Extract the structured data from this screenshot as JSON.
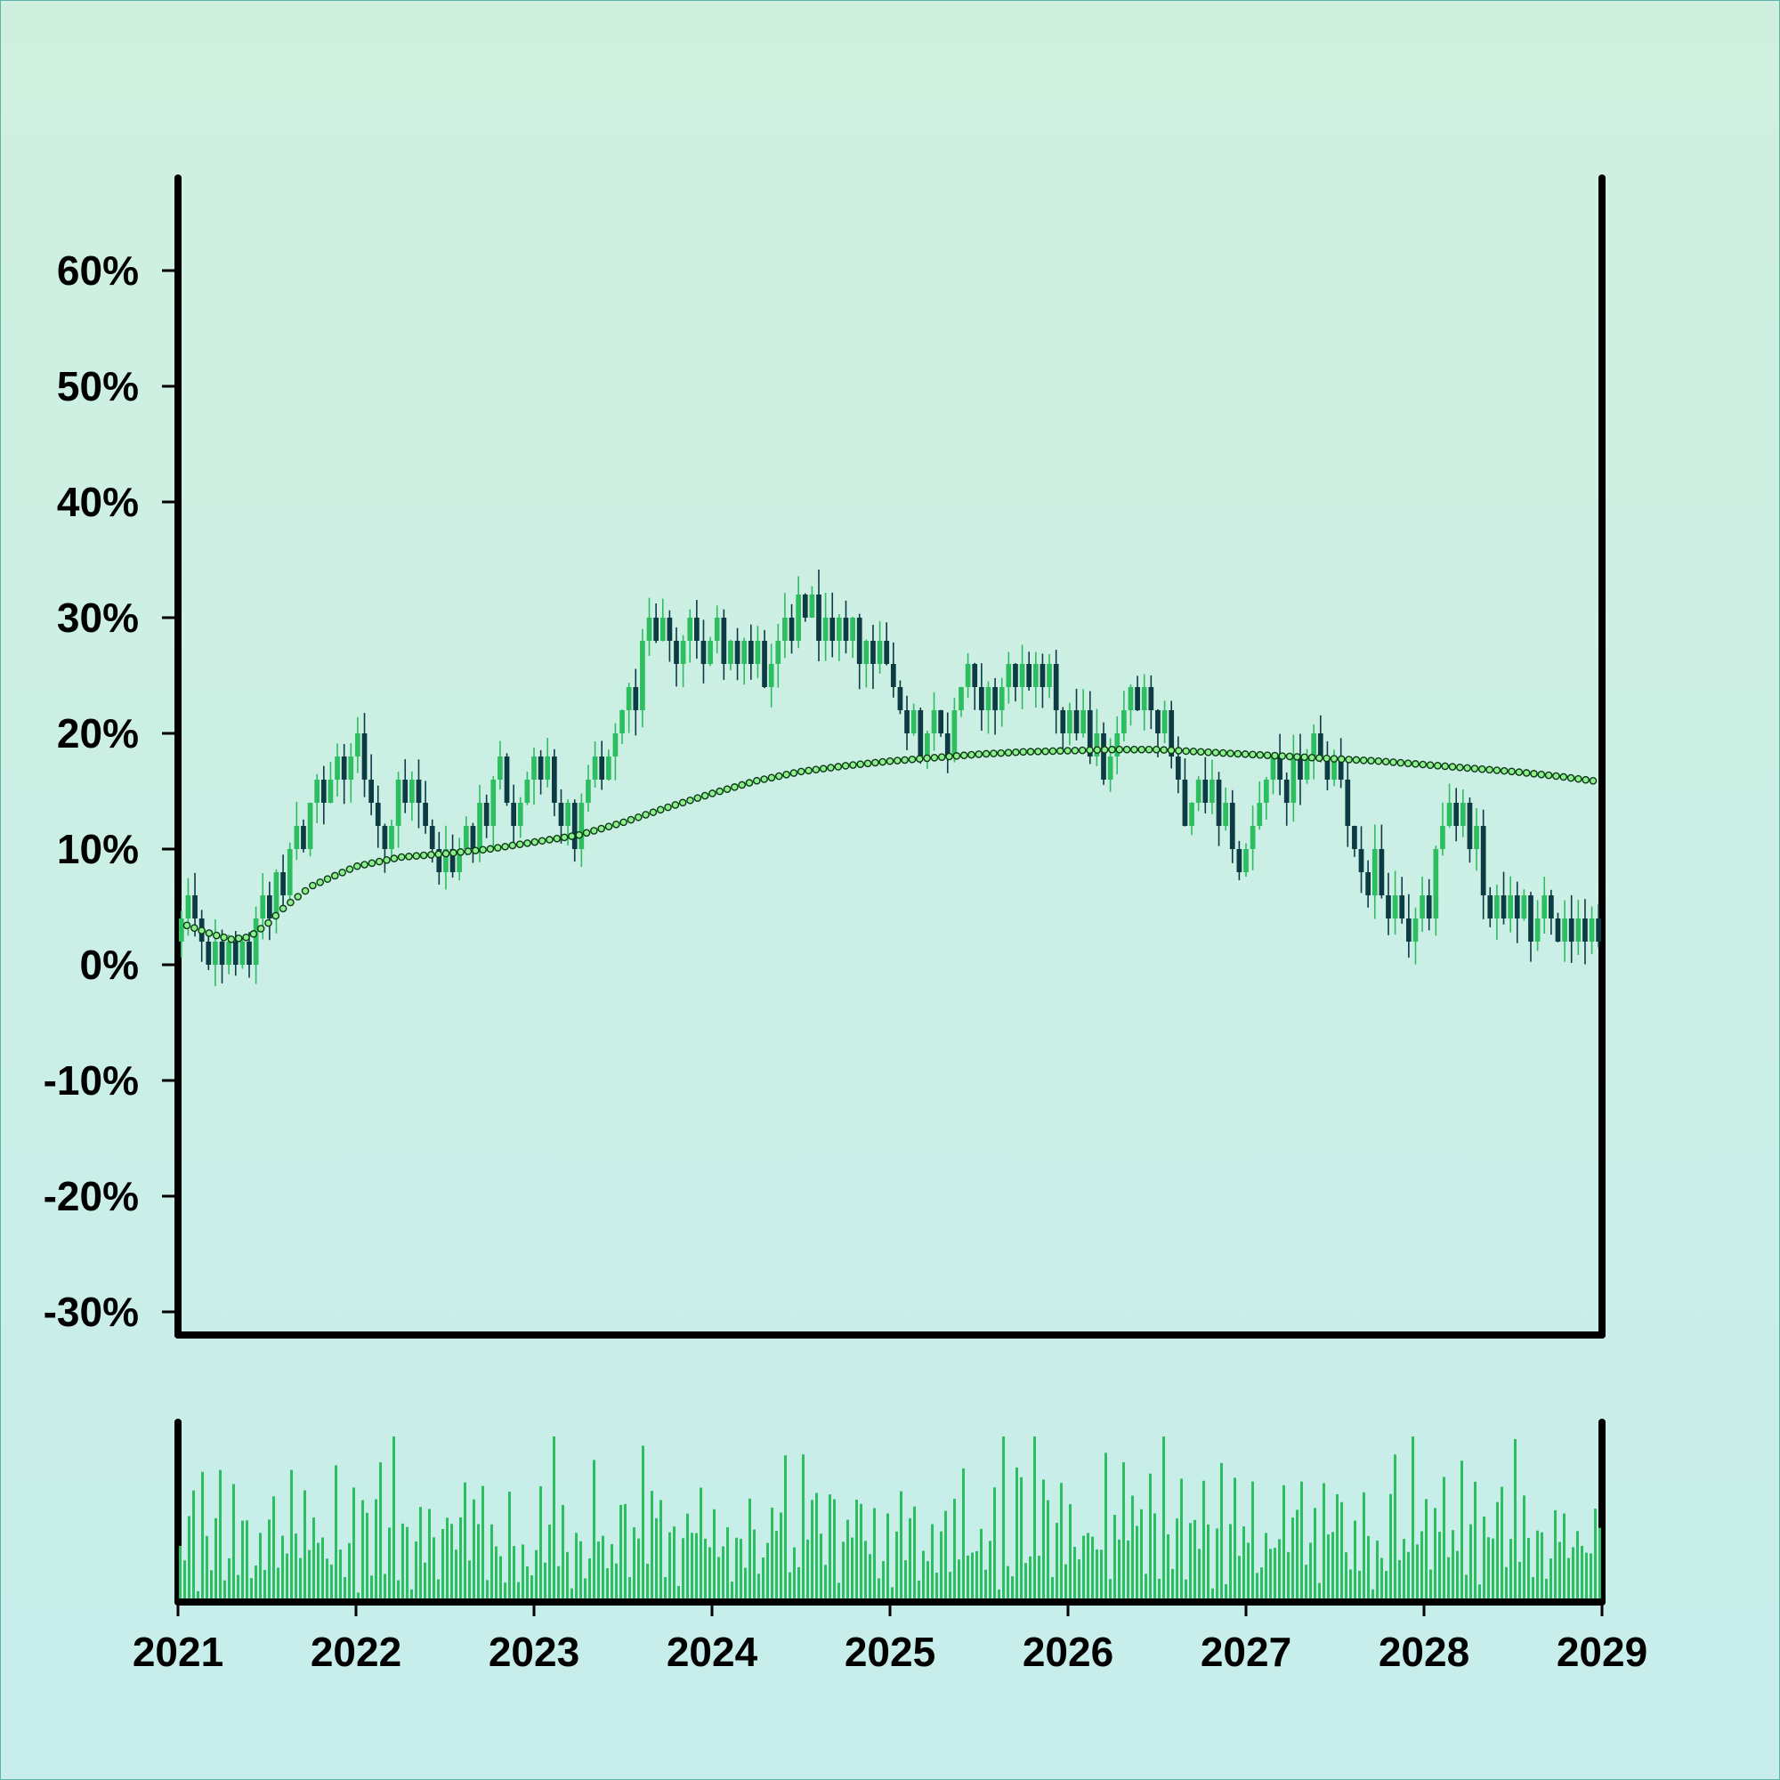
{
  "chart_data": [
    {
      "type": "candlestick",
      "title": "",
      "xlabel": "",
      "ylabel": "",
      "x_ticks": [
        "2021",
        "2022",
        "2023",
        "2024",
        "2025",
        "2026",
        "2027",
        "2028",
        "2029"
      ],
      "x_range": [
        2021,
        2029
      ],
      "y_ticks": [
        "-30%",
        "-20%",
        "-10%",
        "0%",
        "10%",
        "20%",
        "30%",
        "40%",
        "50%",
        "60%"
      ],
      "ylim": [
        -32,
        68
      ],
      "grid": false,
      "colors": {
        "up": "#2dbe60",
        "down": "#0d3b44",
        "trend_fill": "#8cf08c",
        "trend_stroke": "#0a3a14"
      },
      "trend_line": [
        [
          2021.05,
          3.4
        ],
        [
          2021.2,
          2.6
        ],
        [
          2021.3,
          2.2
        ],
        [
          2021.4,
          2.4
        ],
        [
          2021.5,
          3.5
        ],
        [
          2021.6,
          5.0
        ],
        [
          2021.75,
          6.8
        ],
        [
          2022.0,
          8.5
        ],
        [
          2022.25,
          9.3
        ],
        [
          2022.5,
          9.6
        ],
        [
          2022.75,
          10.0
        ],
        [
          2023.0,
          10.6
        ],
        [
          2023.25,
          11.2
        ],
        [
          2023.5,
          12.3
        ],
        [
          2023.75,
          13.6
        ],
        [
          2024.0,
          14.8
        ],
        [
          2024.25,
          15.9
        ],
        [
          2024.5,
          16.7
        ],
        [
          2024.75,
          17.2
        ],
        [
          2025.0,
          17.6
        ],
        [
          2025.25,
          17.9
        ],
        [
          2025.5,
          18.2
        ],
        [
          2025.75,
          18.4
        ],
        [
          2026.0,
          18.5
        ],
        [
          2026.25,
          18.6
        ],
        [
          2026.5,
          18.6
        ],
        [
          2026.75,
          18.4
        ],
        [
          2027.0,
          18.2
        ],
        [
          2027.25,
          18.0
        ],
        [
          2027.5,
          17.8
        ],
        [
          2027.75,
          17.6
        ],
        [
          2028.0,
          17.3
        ],
        [
          2028.25,
          17.0
        ],
        [
          2028.5,
          16.7
        ],
        [
          2028.75,
          16.3
        ],
        [
          2028.95,
          15.9
        ]
      ],
      "price_path": [
        [
          2021.0,
          2.0
        ],
        [
          2021.08,
          5.0
        ],
        [
          2021.2,
          1.0
        ],
        [
          2021.3,
          2.0
        ],
        [
          2021.38,
          0.5
        ],
        [
          2021.5,
          5.0
        ],
        [
          2021.6,
          8.0
        ],
        [
          2021.75,
          13.0
        ],
        [
          2021.9,
          16.0
        ],
        [
          2022.0,
          19.0
        ],
        [
          2022.1,
          15.0
        ],
        [
          2022.18,
          12.0
        ],
        [
          2022.25,
          15.0
        ],
        [
          2022.35,
          13.0
        ],
        [
          2022.45,
          11.0
        ],
        [
          2022.55,
          8.0
        ],
        [
          2022.65,
          10.0
        ],
        [
          2022.8,
          17.0
        ],
        [
          2022.9,
          14.0
        ],
        [
          2023.0,
          17.0
        ],
        [
          2023.1,
          14.0
        ],
        [
          2023.2,
          10.5
        ],
        [
          2023.3,
          15.0
        ],
        [
          2023.4,
          17.0
        ],
        [
          2023.5,
          22.0
        ],
        [
          2023.65,
          28.0
        ],
        [
          2023.75,
          28.0
        ],
        [
          2023.85,
          27.0
        ],
        [
          2024.0,
          29.0
        ],
        [
          2024.12,
          25.5
        ],
        [
          2024.2,
          27.5
        ],
        [
          2024.3,
          24.0
        ],
        [
          2024.42,
          29.0
        ],
        [
          2024.5,
          31.0
        ],
        [
          2024.6,
          28.0
        ],
        [
          2024.7,
          31.0
        ],
        [
          2024.8,
          27.0
        ],
        [
          2024.95,
          27.0
        ],
        [
          2025.1,
          22.0
        ],
        [
          2025.2,
          18.0
        ],
        [
          2025.3,
          21.0
        ],
        [
          2025.4,
          24.0
        ],
        [
          2025.5,
          25.0
        ],
        [
          2025.6,
          22.0
        ],
        [
          2025.7,
          24.0
        ],
        [
          2025.8,
          25.0
        ],
        [
          2025.9,
          22.0
        ],
        [
          2026.1,
          21.0
        ],
        [
          2026.2,
          16.0
        ],
        [
          2026.3,
          21.0
        ],
        [
          2026.38,
          24.0
        ],
        [
          2026.5,
          19.0
        ],
        [
          2026.55,
          20.0
        ],
        [
          2026.65,
          14.0
        ],
        [
          2026.8,
          14.0
        ],
        [
          2026.9,
          10.0
        ],
        [
          2026.97,
          8.0
        ],
        [
          2027.05,
          12.0
        ],
        [
          2027.15,
          17.0
        ],
        [
          2027.3,
          17.0
        ],
        [
          2027.4,
          18.5
        ],
        [
          2027.5,
          17.0
        ],
        [
          2027.6,
          12.0
        ],
        [
          2027.7,
          9.0
        ],
        [
          2027.8,
          6.0
        ],
        [
          2027.9,
          4.0
        ],
        [
          2028.0,
          6.0
        ],
        [
          2028.1,
          11.0
        ],
        [
          2028.15,
          14.0
        ],
        [
          2028.3,
          8.0
        ],
        [
          2028.4,
          5.0
        ],
        [
          2028.5,
          4.0
        ],
        [
          2028.6,
          3.5
        ],
        [
          2028.7,
          4.0
        ],
        [
          2028.8,
          2.0
        ],
        [
          2028.95,
          2.5
        ]
      ],
      "volume": {
        "relative_heights": [
          0.72,
          0.22,
          0.85,
          0.6,
          0.1,
          0.95,
          0.55,
          0.35,
          0.7,
          0.8,
          0.3,
          0.45,
          0.9,
          0.25,
          0.6,
          0.5,
          0.15,
          0.4,
          0.7,
          0.2,
          0.55,
          0.8,
          0.3,
          0.65,
          0.45,
          0.9,
          0.35,
          0.5,
          0.75,
          0.25,
          0.6,
          0.4,
          0.85,
          0.3,
          0.55,
          0.7
        ]
      }
    }
  ]
}
